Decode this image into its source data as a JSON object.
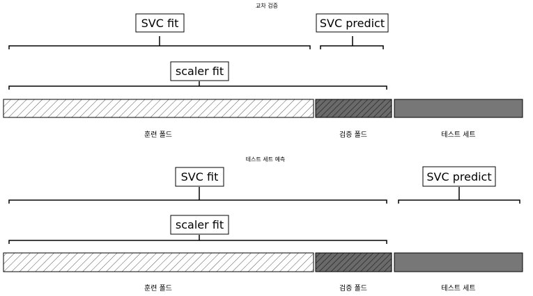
{
  "panels": [
    {
      "title": "교차 검증",
      "svc_fit_label": "SVC fit",
      "svc_predict_label": "SVC predict",
      "scaler_fit_label": "scaler fit",
      "segments": {
        "train": "훈련 폴드",
        "validation": "검증 폴드",
        "test": "테스트 세트"
      }
    },
    {
      "title": "테스트 세트 예측",
      "svc_fit_label": "SVC fit",
      "svc_predict_label": "SVC predict",
      "scaler_fit_label": "scaler fit",
      "segments": {
        "train": "훈련 폴드",
        "validation": "검증 폴드",
        "test": "테스트 세트"
      }
    }
  ],
  "colors": {
    "test_fill": "#777777",
    "hatch_light": "#555555",
    "hatch_dark": "#5a5a5a",
    "hatch_dark_lines": "#222222"
  }
}
